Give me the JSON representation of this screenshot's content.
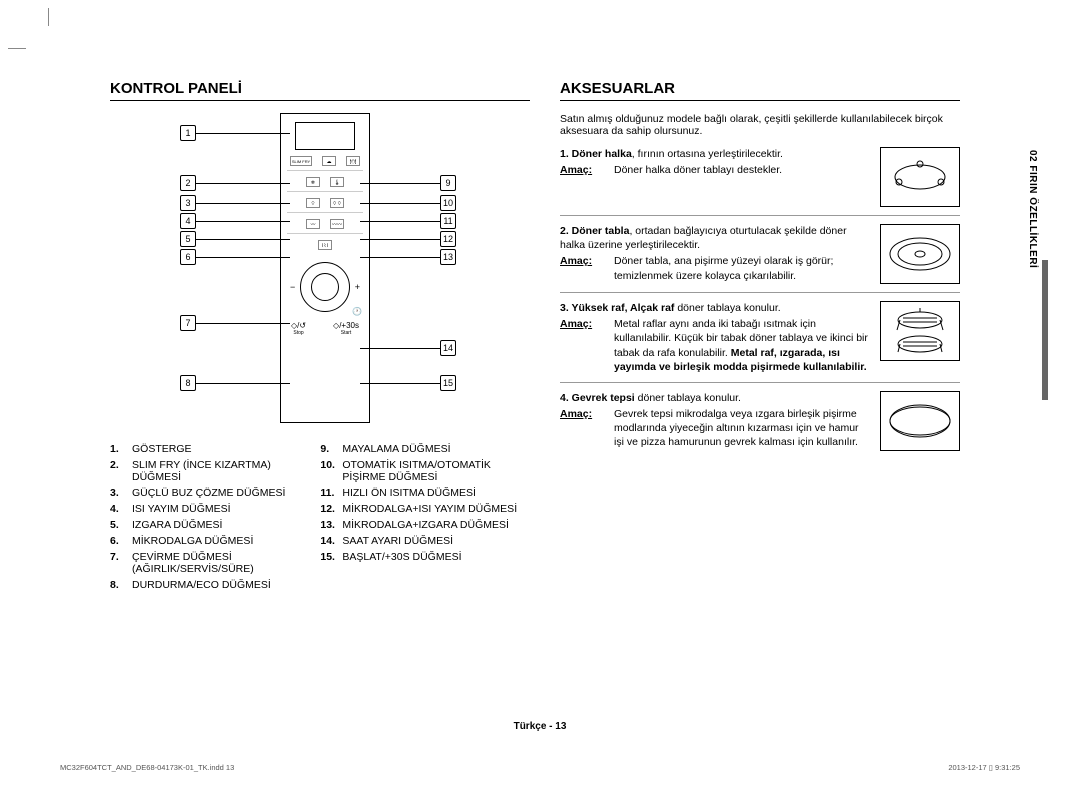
{
  "left": {
    "title": "KONTROL PANELİ",
    "panel": {
      "dial_minus": "−",
      "dial_plus": "+",
      "slim_label": "SLIM FRY",
      "stop_icon": "◇/↺",
      "stop_label": "Stop",
      "start_icon": "◇/+30s",
      "start_label": "Start"
    },
    "callouts_left": [
      "1",
      "2",
      "3",
      "4",
      "5",
      "6",
      "7",
      "8"
    ],
    "callouts_right": [
      "9",
      "10",
      "11",
      "12",
      "13",
      "14",
      "15"
    ],
    "legend_left": [
      {
        "n": "1.",
        "t": "GÖSTERGE"
      },
      {
        "n": "2.",
        "t": "SLIM FRY (İNCE KIZARTMA) DÜĞMESİ"
      },
      {
        "n": "3.",
        "t": "GÜÇLÜ BUZ ÇÖZME DÜĞMESİ"
      },
      {
        "n": "4.",
        "t": "ISI YAYIM DÜĞMESİ"
      },
      {
        "n": "5.",
        "t": "IZGARA DÜĞMESİ"
      },
      {
        "n": "6.",
        "t": "MİKRODALGA DÜĞMESİ"
      },
      {
        "n": "7.",
        "t": "ÇEVİRME DÜĞMESİ (AĞIRLIK/SERVİS/SÜRE)"
      },
      {
        "n": "8.",
        "t": "DURDURMA/ECO DÜĞMESİ"
      }
    ],
    "legend_right": [
      {
        "n": "9.",
        "t": "MAYALAMA DÜĞMESİ"
      },
      {
        "n": "10.",
        "t": "OTOMATİK ISITMA/OTOMATİK PİŞİRME DÜĞMESİ"
      },
      {
        "n": "11.",
        "t": "HIZLI ÖN ISITMA DÜĞMESİ"
      },
      {
        "n": "12.",
        "t": "MİKRODALGA+ISI YAYIM DÜĞMESİ"
      },
      {
        "n": "13.",
        "t": "MİKRODALGA+IZGARA DÜĞMESİ"
      },
      {
        "n": "14.",
        "t": "SAAT AYARI DÜĞMESİ"
      },
      {
        "n": "15.",
        "t": "BAŞLAT/+30S DÜĞMESİ"
      }
    ]
  },
  "right": {
    "title": "AKSESUARLAR",
    "intro": "Satın almış olduğunuz modele bağlı olarak, çeşitli şekillerde kullanılabilecek birçok aksesuara da sahip olursunuz.",
    "amac_label": "Amaç:",
    "items": [
      {
        "title_prefix": "1. Döner halka",
        "title_rest": ", fırının ortasına yerleştirilecektir.",
        "amac": "Döner halka döner tablayı destekler.",
        "bold_tail": ""
      },
      {
        "title_prefix": "2. Döner tabla",
        "title_rest": ", ortadan bağlayıcıya oturtulacak şekilde döner halka üzerine yerleştirilecektir.",
        "amac": "Döner tabla, ana pişirme yüzeyi olarak iş görür; temizlenmek üzere kolayca çıkarılabilir.",
        "bold_tail": ""
      },
      {
        "title_prefix": "3. Yüksek raf, Alçak raf",
        "title_rest": " döner tablaya konulur.",
        "amac": "Metal raflar aynı anda iki tabağı ısıtmak için kullanılabilir. Küçük bir tabak döner tablaya ve ikinci bir tabak da rafa konulabilir. ",
        "bold_tail": "Metal raf, ızgarada, ısı yayımda ve birleşik modda pişirmede kullanılabilir."
      },
      {
        "title_prefix": "4. Gevrek tepsi",
        "title_rest": " döner tablaya konulur.",
        "amac": "Gevrek tepsi mikrodalga veya ızgara birleşik pişirme modlarında yiyeceğin altının kızarması için ve hamur işi ve pizza hamurunun gevrek kalması için kullanılır.",
        "bold_tail": ""
      }
    ]
  },
  "side_tab": "02  FIRIN ÖZELLİKLERİ",
  "footer_center": "Türkçe - 13",
  "print_left": "MC32F604TCT_AND_DE68-04173K-01_TK.indd   13",
  "print_right": "2013-12-17   ▯ 9:31:25"
}
